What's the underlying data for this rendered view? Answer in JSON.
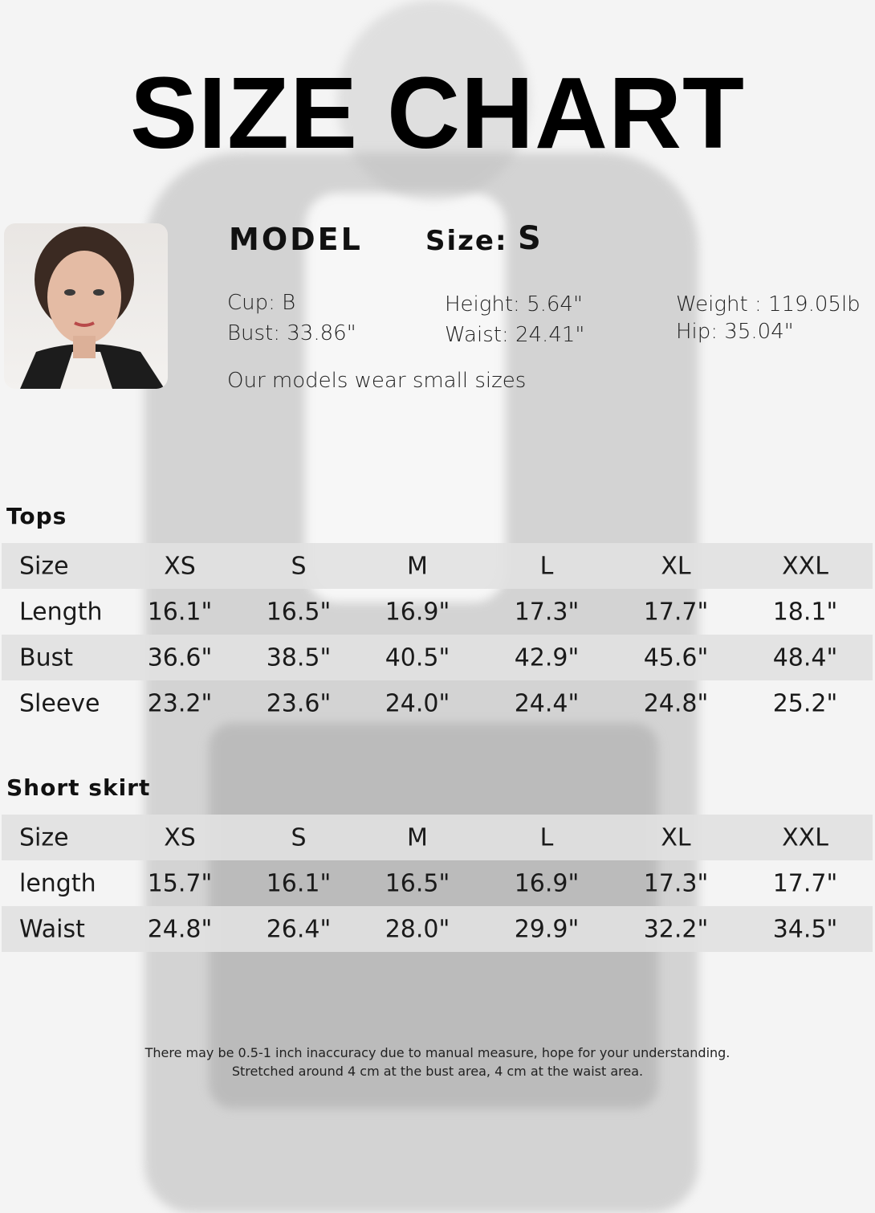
{
  "title": "SIZE CHART",
  "model": {
    "heading": "MODEL",
    "size_label": "Size:",
    "size_value": "S",
    "cup": "Cup: B",
    "bust": "Bust: 33.86\"",
    "height": "Height: 5.64\"",
    "waist": "Waist: 24.41\"",
    "weight": "Weight : 119.05lb",
    "hip": "Hip: 35.04\"",
    "note": "Our models wear small sizes"
  },
  "tops": {
    "heading": "Tops",
    "header": [
      "Size",
      "XS",
      "S",
      "M",
      "L",
      "XL",
      "XXL"
    ],
    "rows": [
      [
        "Length",
        "16.1\"",
        "16.5\"",
        "16.9\"",
        "17.3\"",
        "17.7\"",
        "18.1\""
      ],
      [
        "Bust",
        "36.6\"",
        "38.5\"",
        "40.5\"",
        "42.9\"",
        "45.6\"",
        "48.4\""
      ],
      [
        "Sleeve",
        "23.2\"",
        "23.6\"",
        "24.0\"",
        "24.4\"",
        "24.8\"",
        "25.2\""
      ]
    ]
  },
  "skirt": {
    "heading": "Short skirt",
    "header": [
      "Size",
      "XS",
      "S",
      "M",
      "L",
      "XL",
      "XXL"
    ],
    "rows": [
      [
        "length",
        "15.7\"",
        "16.1\"",
        "16.5\"",
        "16.9\"",
        "17.3\"",
        "17.7\""
      ],
      [
        "Waist",
        "24.8\"",
        "26.4\"",
        "28.0\"",
        "29.9\"",
        "32.2\"",
        "34.5\""
      ]
    ]
  },
  "footnote": {
    "line1": "There may be 0.5-1 inch inaccuracy due to manual measure, hope for your understanding.",
    "line2": "Stretched around 4 cm at the bust area, 4 cm at the waist area."
  }
}
